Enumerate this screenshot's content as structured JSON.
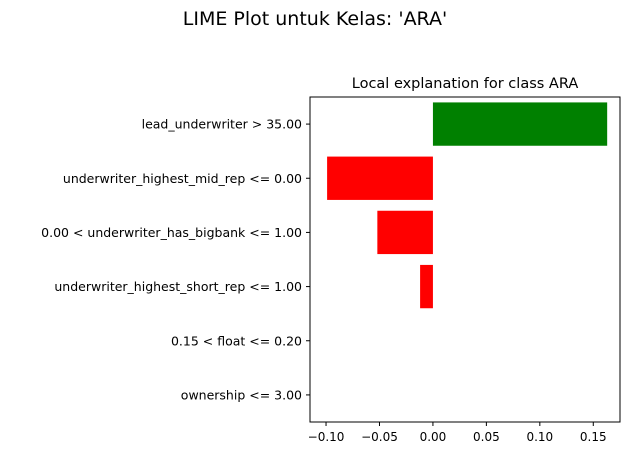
{
  "figure": {
    "suptitle": "LIME Plot untuk Kelas: 'ARA'"
  },
  "chart_data": {
    "type": "bar",
    "orientation": "horizontal",
    "title": "Local explanation for class ARA",
    "xlabel": "",
    "ylabel": "",
    "categories": [
      "lead_underwriter > 35.00",
      "underwriter_highest_mid_rep <= 0.00",
      "0.00 < underwriter_has_bigbank <= 1.00",
      "underwriter_highest_short_rep <= 1.00",
      "0.15 < float <= 0.20",
      "ownership <= 3.00"
    ],
    "values": [
      0.163,
      -0.099,
      -0.052,
      -0.012,
      0.0,
      0.0
    ],
    "xlim": [
      -0.115,
      0.175
    ],
    "xticks": [
      -0.1,
      -0.05,
      0.0,
      0.05,
      0.1,
      0.15
    ],
    "xtick_labels": [
      "−0.10",
      "−0.05",
      "0.00",
      "0.05",
      "0.10",
      "0.15"
    ],
    "colors": {
      "positive": "#008000",
      "negative": "#ff0000"
    },
    "grid": false
  }
}
